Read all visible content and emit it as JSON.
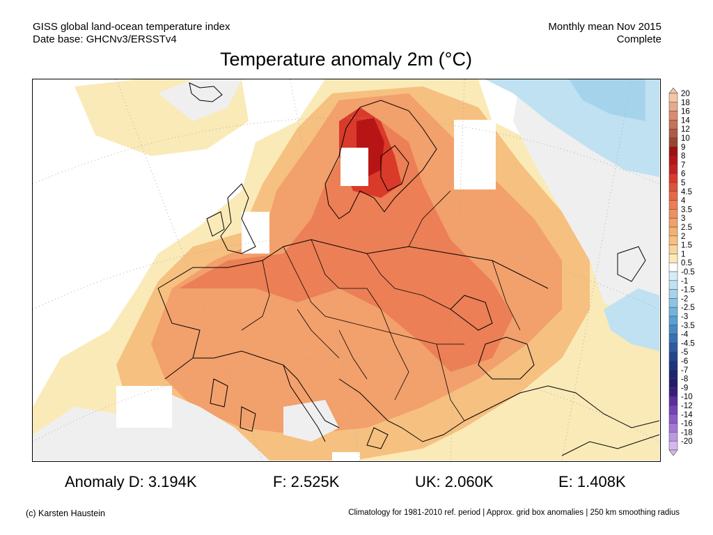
{
  "header": {
    "left_line1": "GISS global land-ocean temperature index",
    "left_line2": "Date base: GHCNv3/ERSSTv4",
    "right_line1": "Monthly mean Nov 2015",
    "right_line2": "Complete"
  },
  "title": "Temperature anomaly 2m (°C)",
  "colorbar": {
    "labels": [
      "20",
      "18",
      "16",
      "14",
      "12",
      "10",
      "9",
      "8",
      "7",
      "6",
      "5",
      "4.5",
      "4",
      "3.5",
      "3",
      "2.5",
      "2",
      "1.5",
      "1",
      "0.5",
      "-0.5",
      "-1",
      "-1.5",
      "-2",
      "-2.5",
      "-3",
      "-3.5",
      "-4",
      "-4.5",
      "-5",
      "-6",
      "-7",
      "-8",
      "-9",
      "-10",
      "-12",
      "-14",
      "-16",
      "-18",
      "-20"
    ],
    "colors": [
      "#f4c6a8",
      "#e9a88a",
      "#d98c6e",
      "#c47258",
      "#b05a44",
      "#9b4433",
      "#a01010",
      "#b71515",
      "#c82020",
      "#d93a2a",
      "#e0523a",
      "#e66a48",
      "#ec7f55",
      "#ef9060",
      "#f2a06c",
      "#f4b070",
      "#f6c080",
      "#f9d59c",
      "#faeab8",
      "#ffffff",
      "#d8ecf7",
      "#bfe1f2",
      "#a6d3ec",
      "#8cc5e5",
      "#72b4dc",
      "#5aa0d2",
      "#4689c4",
      "#3770b3",
      "#2c5aa2",
      "#23458f",
      "#1d347e",
      "#1c2570",
      "#241c6a",
      "#3a1c80",
      "#5a2ea0",
      "#7443b8",
      "#8d5bc9",
      "#a577d6",
      "#bd97e2",
      "#d5b8ee"
    ]
  },
  "anomalies": [
    {
      "label": "Anomaly D: 3.194K"
    },
    {
      "label": "F: 2.525K"
    },
    {
      "label": "UK: 2.060K"
    },
    {
      "label": "E: 1.408K"
    }
  ],
  "footer": {
    "left": "(c) Karsten Haustein",
    "right": "Climatology for 1981-2010 ref. period | Approx. grid box anomalies | 250 km smoothing radius"
  }
}
